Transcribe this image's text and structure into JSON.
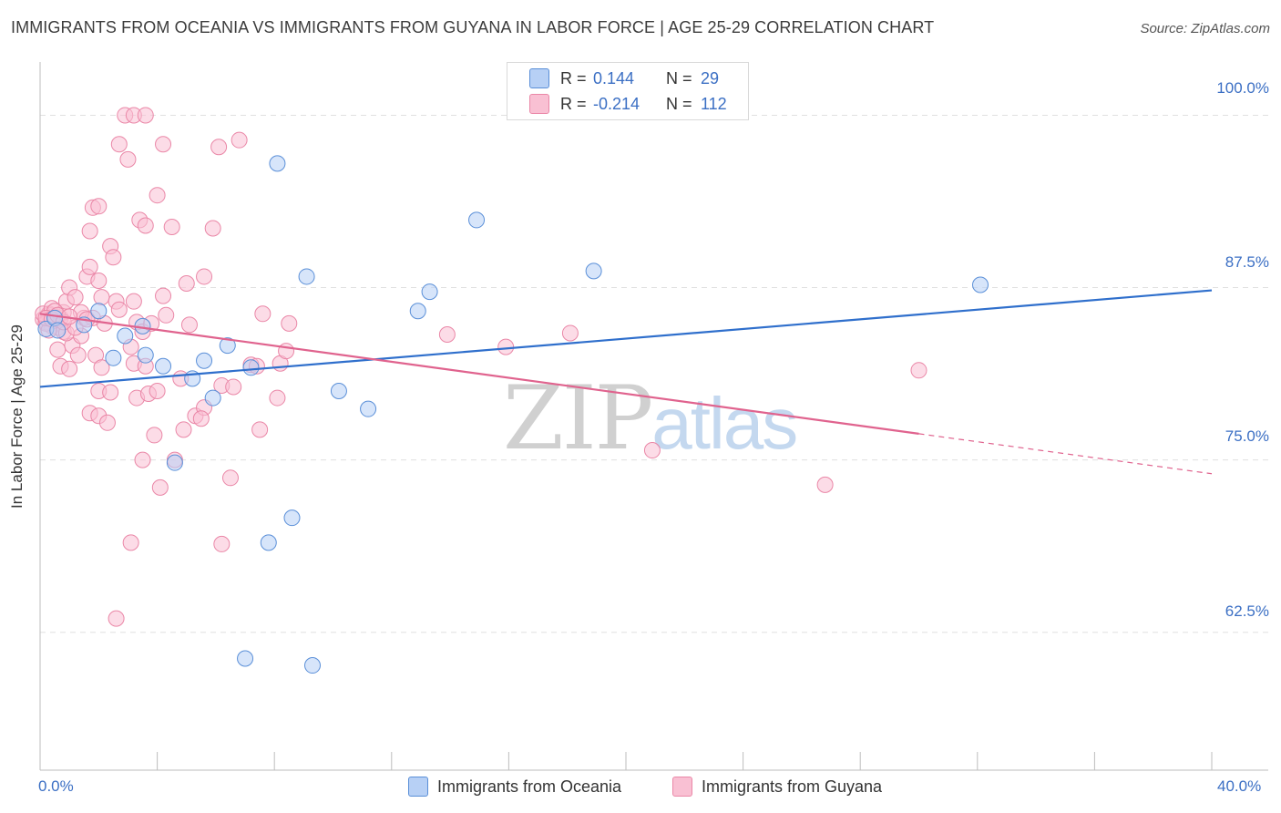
{
  "header": {
    "title": "IMMIGRANTS FROM OCEANIA VS IMMIGRANTS FROM GUYANA IN LABOR FORCE | AGE 25-29 CORRELATION CHART",
    "source": "Source: ZipAtlas.com"
  },
  "watermark": {
    "zip": "ZIP",
    "atlas": "atlas"
  },
  "colors": {
    "oceania_fill": "#b7d0f5",
    "oceania_stroke": "#5a8fd8",
    "oceania_line": "#2f6fcc",
    "guyana_fill": "#f9c0d3",
    "guyana_stroke": "#ea87a7",
    "guyana_line": "#e0638e",
    "grid": "#e0e0e0",
    "tick_text": "#3b6fc4"
  },
  "legend": {
    "r_label": "R =",
    "n_label": "N =",
    "rows": [
      {
        "name": "Immigrants from Oceania",
        "r": "0.144",
        "n": "29"
      },
      {
        "name": "Immigrants from Guyana",
        "r": "-0.214",
        "n": "112"
      }
    ]
  },
  "chart_data": {
    "type": "scatter",
    "title": "IMMIGRANTS FROM OCEANIA VS IMMIGRANTS FROM GUYANA IN LABOR FORCE | AGE 25-29 CORRELATION CHART",
    "xlabel": "",
    "ylabel": "In Labor Force | Age 25-29",
    "xlim": [
      0,
      40
    ],
    "ylim": [
      52.5,
      103.6
    ],
    "x_tick_labels": [
      "0.0%",
      "40.0%"
    ],
    "y_ticks": [
      62.5,
      75.0,
      87.5,
      100.0
    ],
    "y_tick_labels": [
      "62.5%",
      "75.0%",
      "87.5%",
      "100.0%"
    ],
    "grid": true,
    "legend_position": "top-center",
    "series": [
      {
        "name": "Immigrants from Oceania",
        "r": 0.144,
        "n": 29,
        "trend": {
          "x": [
            0,
            40
          ],
          "y": [
            80.3,
            87.3
          ]
        },
        "points": [
          [
            0.2,
            84.5
          ],
          [
            0.5,
            85.3
          ],
          [
            1.5,
            84.8
          ],
          [
            2.0,
            85.8
          ],
          [
            2.5,
            82.4
          ],
          [
            2.9,
            84.0
          ],
          [
            3.5,
            84.7
          ],
          [
            3.6,
            82.6
          ],
          [
            4.2,
            81.8
          ],
          [
            4.6,
            74.8
          ],
          [
            5.2,
            80.9
          ],
          [
            5.6,
            82.2
          ],
          [
            5.9,
            79.5
          ],
          [
            6.4,
            83.3
          ],
          [
            7.0,
            60.6
          ],
          [
            7.2,
            81.7
          ],
          [
            7.8,
            69.0
          ],
          [
            8.1,
            96.5
          ],
          [
            8.6,
            70.8
          ],
          [
            9.1,
            88.3
          ],
          [
            9.3,
            60.1
          ],
          [
            10.2,
            80.0
          ],
          [
            11.2,
            78.7
          ],
          [
            12.9,
            85.8
          ],
          [
            13.3,
            87.2
          ],
          [
            14.9,
            92.4
          ],
          [
            18.9,
            88.7
          ],
          [
            32.1,
            87.7
          ],
          [
            0.6,
            84.4
          ]
        ]
      },
      {
        "name": "Immigrants from Guyana",
        "r": -0.214,
        "n": 112,
        "trend": {
          "x": [
            0,
            30
          ],
          "y": [
            85.6,
            76.9
          ]
        },
        "trend_dashed": {
          "x": [
            30,
            40
          ],
          "y": [
            76.9,
            74.0
          ]
        },
        "points": [
          [
            0.1,
            85.2
          ],
          [
            0.2,
            85.0
          ],
          [
            0.3,
            85.6
          ],
          [
            0.4,
            84.7
          ],
          [
            0.5,
            85.4
          ],
          [
            0.3,
            85.5
          ],
          [
            0.2,
            84.9
          ],
          [
            0.1,
            85.6
          ],
          [
            0.6,
            84.6
          ],
          [
            0.4,
            86.0
          ],
          [
            0.5,
            85.1
          ],
          [
            0.7,
            85.3
          ],
          [
            0.8,
            85.7
          ],
          [
            0.9,
            86.5
          ],
          [
            1.0,
            87.5
          ],
          [
            0.6,
            83.0
          ],
          [
            0.8,
            84.3
          ],
          [
            0.7,
            81.8
          ],
          [
            1.0,
            81.6
          ],
          [
            1.1,
            83.3
          ],
          [
            1.2,
            86.8
          ],
          [
            1.3,
            82.6
          ],
          [
            1.4,
            84.0
          ],
          [
            1.5,
            85.3
          ],
          [
            1.6,
            88.3
          ],
          [
            1.7,
            89.0
          ],
          [
            1.8,
            85.3
          ],
          [
            1.9,
            82.6
          ],
          [
            1.7,
            91.6
          ],
          [
            1.8,
            93.3
          ],
          [
            2.0,
            93.4
          ],
          [
            2.0,
            88.0
          ],
          [
            2.1,
            86.8
          ],
          [
            2.2,
            84.9
          ],
          [
            2.0,
            80.0
          ],
          [
            2.1,
            81.7
          ],
          [
            1.7,
            78.4
          ],
          [
            2.0,
            78.2
          ],
          [
            2.3,
            77.7
          ],
          [
            2.4,
            79.9
          ],
          [
            2.4,
            90.5
          ],
          [
            2.5,
            89.7
          ],
          [
            2.6,
            86.5
          ],
          [
            2.7,
            85.9
          ],
          [
            2.7,
            97.9
          ],
          [
            2.9,
            100.0
          ],
          [
            3.0,
            96.8
          ],
          [
            3.1,
            83.2
          ],
          [
            3.2,
            100.0
          ],
          [
            3.2,
            82.0
          ],
          [
            3.2,
            86.5
          ],
          [
            3.3,
            85.0
          ],
          [
            3.3,
            79.5
          ],
          [
            3.4,
            92.4
          ],
          [
            3.5,
            84.3
          ],
          [
            3.6,
            81.8
          ],
          [
            3.7,
            79.8
          ],
          [
            3.6,
            92.0
          ],
          [
            3.6,
            100.0
          ],
          [
            3.5,
            75.0
          ],
          [
            3.8,
            84.9
          ],
          [
            3.9,
            76.8
          ],
          [
            4.0,
            80.0
          ],
          [
            4.0,
            94.2
          ],
          [
            4.1,
            73.0
          ],
          [
            4.2,
            86.9
          ],
          [
            4.3,
            85.5
          ],
          [
            4.2,
            97.9
          ],
          [
            4.5,
            91.9
          ],
          [
            4.6,
            75.0
          ],
          [
            4.9,
            77.2
          ],
          [
            4.8,
            80.9
          ],
          [
            5.0,
            87.8
          ],
          [
            5.1,
            84.8
          ],
          [
            5.3,
            78.2
          ],
          [
            5.6,
            78.8
          ],
          [
            5.6,
            88.3
          ],
          [
            5.5,
            78.0
          ],
          [
            5.9,
            91.8
          ],
          [
            6.1,
            97.7
          ],
          [
            6.2,
            68.9
          ],
          [
            6.2,
            80.4
          ],
          [
            6.6,
            80.3
          ],
          [
            6.5,
            73.7
          ],
          [
            6.8,
            98.2
          ],
          [
            7.2,
            81.9
          ],
          [
            7.5,
            77.2
          ],
          [
            7.6,
            85.6
          ],
          [
            7.4,
            81.8
          ],
          [
            8.1,
            79.5
          ],
          [
            8.2,
            82.0
          ],
          [
            8.4,
            82.9
          ],
          [
            8.5,
            84.9
          ],
          [
            2.6,
            63.5
          ],
          [
            3.1,
            69.0
          ],
          [
            13.9,
            84.1
          ],
          [
            15.9,
            83.2
          ],
          [
            18.1,
            84.2
          ],
          [
            20.9,
            75.7
          ],
          [
            26.8,
            73.2
          ],
          [
            30.0,
            81.5
          ],
          [
            0.3,
            84.4
          ],
          [
            0.5,
            85.8
          ],
          [
            0.9,
            84.2
          ],
          [
            1.2,
            84.6
          ],
          [
            1.4,
            85.7
          ],
          [
            0.2,
            85.3
          ],
          [
            0.4,
            85.2
          ],
          [
            0.6,
            85.5
          ],
          [
            0.8,
            85.0
          ],
          [
            1.6,
            85.2
          ],
          [
            1.0,
            85.4
          ]
        ]
      }
    ]
  }
}
